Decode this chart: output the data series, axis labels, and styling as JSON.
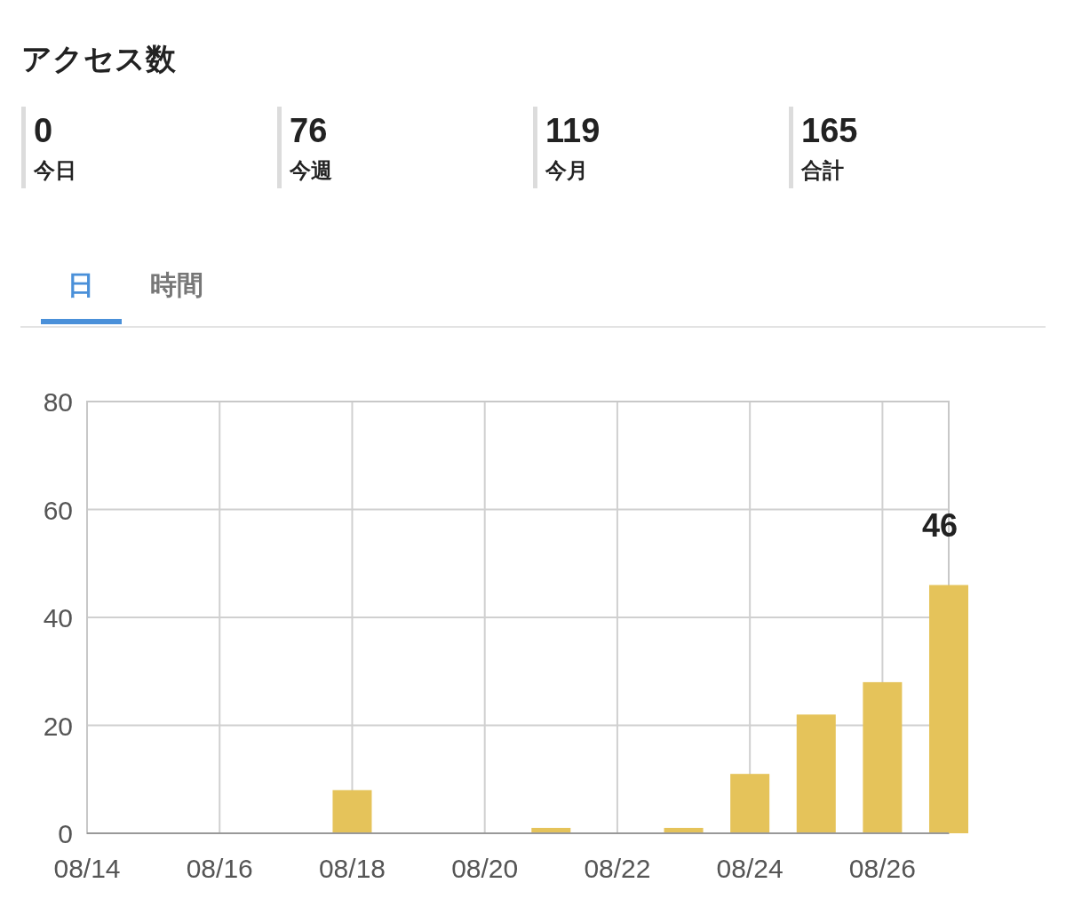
{
  "chart_data": [
    {
      "type": "other",
      "title": "アクセス数",
      "categories": [
        "今日",
        "今週",
        "今月",
        "合計"
      ],
      "values": [
        0,
        76,
        119,
        165
      ],
      "data_labels": true,
      "annotations": [
        "日",
        "時間"
      ]
    },
    {
      "type": "bar",
      "x": [
        "--08-14",
        "--08-15",
        "--08-16",
        "--08-17",
        "--08-18",
        "--08-19",
        "--08-20",
        "--08-21",
        "--08-22",
        "--08-23",
        "--08-24",
        "--08-25",
        "--08-26",
        "--08-27"
      ],
      "values": [
        0,
        0,
        0,
        0,
        8,
        0,
        0,
        1,
        0,
        1,
        11,
        22,
        28,
        46
      ],
      "value_labels": [
        null,
        null,
        null,
        null,
        null,
        null,
        null,
        null,
        null,
        null,
        null,
        null,
        null,
        "46"
      ],
      "color": "#e5c35a",
      "xlim": [
        "--08-14",
        "--08-27"
      ],
      "xticks": [
        {
          "value": "--08-14",
          "label": "08/14"
        },
        {
          "value": "--08-16",
          "label": "08/16"
        },
        {
          "value": "--08-18",
          "label": "08/18"
        },
        {
          "value": "--08-20",
          "label": "08/20"
        },
        {
          "value": "--08-22",
          "label": "08/22"
        },
        {
          "value": "--08-24",
          "label": "08/24"
        },
        {
          "value": "--08-26",
          "label": "08/26"
        }
      ],
      "ylim": [
        0,
        80
      ],
      "yticks": [
        0,
        20,
        40,
        60,
        80
      ],
      "grid": true
    }
  ]
}
